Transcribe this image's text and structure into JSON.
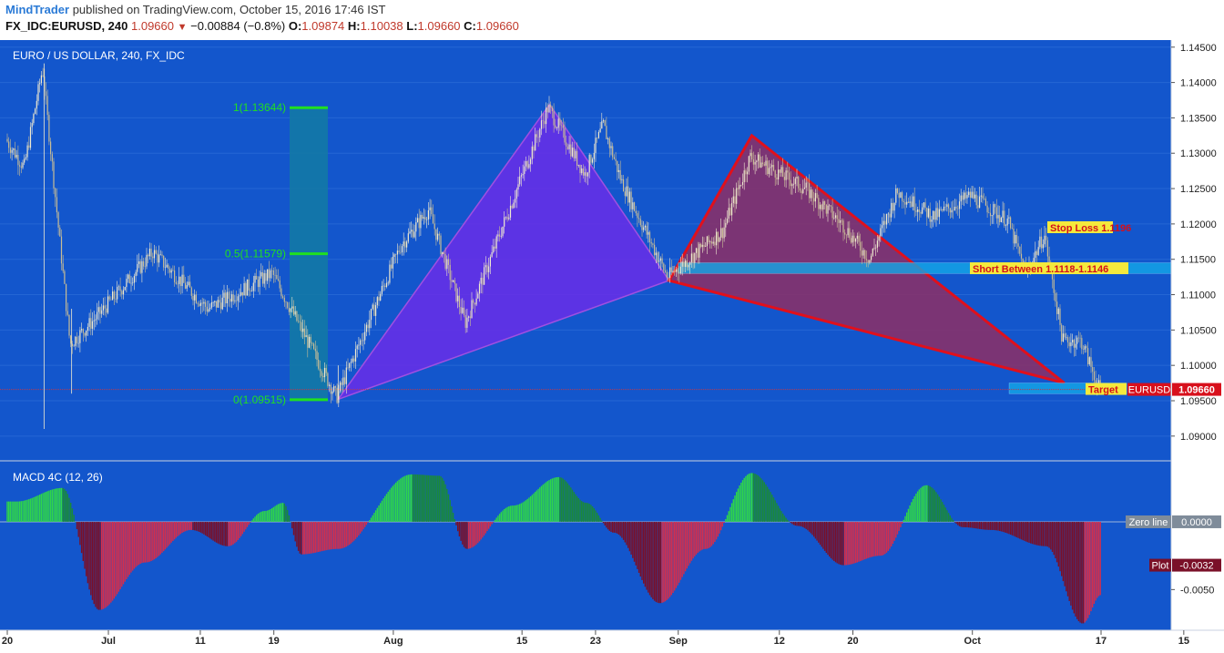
{
  "header": {
    "brand": "MindTrader",
    "published": " published on TradingView.com, October 15, 2016 17:46 IST",
    "symbol": "FX_IDC:EURUSD, 240",
    "last": "1.09660",
    "change": "−0.00884 (−0.8%)",
    "open_label": "O:",
    "open": "1.09874",
    "high_label": "H:",
    "high": "1.10038",
    "low_label": "L:",
    "low": "1.09660",
    "close_label": "C:",
    "close": "1.09660"
  },
  "colors": {
    "background": "#1356cc",
    "up_candle": "#f0ead0",
    "down_candle": "#c9bd95",
    "fib_box": "#137aa3",
    "fib_line": "#20e020",
    "bullish_pattern": "#6a2de8",
    "bearish_pattern": "#8a3068",
    "pattern_edge": "#e0101c",
    "zone": "#13a8e8",
    "label_bg": "#f4e93c",
    "label_text": "#d4101c",
    "macd_pos_light": "#2ed64a",
    "macd_pos_dark": "#1a8a3a",
    "macd_neg_light": "#d42e4c",
    "macd_neg_dark": "#7a1028"
  },
  "chart_data": [
    {
      "type": "candlestick",
      "title": "EURO / US DOLLAR, 240, FX_IDC",
      "ylim": [
        1.0865,
        1.146
      ],
      "price_ticks": [
        "1.14500",
        "1.14000",
        "1.13500",
        "1.13000",
        "1.12500",
        "1.12000",
        "1.11500",
        "1.11000",
        "1.10500",
        "1.10000",
        "1.09500",
        "1.09000"
      ],
      "x_ticks": [
        "20",
        "Jul",
        "11",
        "19",
        "Aug",
        "15",
        "23",
        "Sep",
        "12",
        "20",
        "Oct",
        "17",
        "15"
      ],
      "last_price": "1.09660",
      "last_price_label": "EURUSD",
      "price_path_approx": [
        {
          "date": "2016-06-20",
          "close": 1.132
        },
        {
          "date": "2016-06-22",
          "close": 1.128
        },
        {
          "date": "2016-06-24",
          "close": 1.142
        },
        {
          "date": "2016-06-27",
          "close": 1.103
        },
        {
          "date": "2016-06-30",
          "close": 1.107
        },
        {
          "date": "2016-07-06",
          "close": 1.116
        },
        {
          "date": "2016-07-12",
          "close": 1.108
        },
        {
          "date": "2016-07-19",
          "close": 1.113
        },
        {
          "date": "2016-07-25",
          "close": 1.098
        },
        {
          "date": "2016-07-26",
          "close": 1.0955
        },
        {
          "date": "2016-08-02",
          "close": 1.117
        },
        {
          "date": "2016-08-05",
          "close": 1.122
        },
        {
          "date": "2016-08-09",
          "close": 1.106
        },
        {
          "date": "2016-08-12",
          "close": 1.116
        },
        {
          "date": "2016-08-18",
          "close": 1.1365
        },
        {
          "date": "2016-08-22",
          "close": 1.127
        },
        {
          "date": "2016-08-24",
          "close": 1.134
        },
        {
          "date": "2016-08-26",
          "close": 1.126
        },
        {
          "date": "2016-08-31",
          "close": 1.1125
        },
        {
          "date": "2016-09-06",
          "close": 1.119
        },
        {
          "date": "2016-09-09",
          "close": 1.1295
        },
        {
          "date": "2016-09-15",
          "close": 1.125
        },
        {
          "date": "2016-09-19",
          "close": 1.12
        },
        {
          "date": "2016-09-22",
          "close": 1.115
        },
        {
          "date": "2016-09-25",
          "close": 1.1245
        },
        {
          "date": "2016-09-29",
          "close": 1.121
        },
        {
          "date": "2016-10-03",
          "close": 1.124
        },
        {
          "date": "2016-10-07",
          "close": 1.1205
        },
        {
          "date": "2016-10-09",
          "close": 1.113
        },
        {
          "date": "2016-10-11",
          "close": 1.1185
        },
        {
          "date": "2016-10-13",
          "close": 1.1035
        },
        {
          "date": "2016-10-15",
          "close": 1.1035
        },
        {
          "date": "2016-10-17",
          "close": 1.0966
        }
      ],
      "fib_levels": [
        {
          "label": "1(1.13644)",
          "price": 1.13644
        },
        {
          "label": "0.5(1.11579)",
          "price": 1.11579
        },
        {
          "label": "0(1.09515)",
          "price": 1.09515
        }
      ],
      "patterns": [
        {
          "kind": "bullish",
          "points": [
            {
              "date": "2016-07-26",
              "price": 1.0952
            },
            {
              "date": "2016-08-18",
              "price": 1.1369
            },
            {
              "date": "2016-08-31",
              "price": 1.112
            }
          ]
        },
        {
          "kind": "bearish",
          "points": [
            {
              "date": "2016-08-31",
              "price": 1.112
            },
            {
              "date": "2016-09-09",
              "price": 1.1325
            },
            {
              "date": "2016-10-13",
              "price": 1.0975
            }
          ]
        }
      ],
      "annotations": [
        {
          "text": "Stop Loss 1.1196",
          "price": 1.1196
        },
        {
          "text": "Short Between 1.1118-1.1146",
          "price": 1.1138
        },
        {
          "text": "Target",
          "price": 1.0966
        }
      ],
      "zones": [
        {
          "from": 1.113,
          "to": 1.1145,
          "start": "2016-09-01",
          "end": "2016-10-17"
        },
        {
          "from": 1.096,
          "to": 1.0975,
          "start": "2016-10-07",
          "end": "2016-10-17"
        }
      ]
    },
    {
      "type": "bar",
      "title": "MACD 4C (12, 26)",
      "ylim": [
        -0.008,
        0.0045
      ],
      "y_ticks": [
        "-0.0050"
      ],
      "zero_label": "Zero line",
      "zero_value": "0.0000",
      "plot_label": "Plot",
      "plot_value": "-0.0032",
      "histogram_approx": [
        {
          "date": "2016-06-21",
          "value": 0.0015
        },
        {
          "date": "2016-06-26",
          "value": 0.0025
        },
        {
          "date": "2016-06-30",
          "value": -0.0065
        },
        {
          "date": "2016-07-05",
          "value": -0.003
        },
        {
          "date": "2016-07-10",
          "value": -0.0006
        },
        {
          "date": "2016-07-14",
          "value": -0.0018
        },
        {
          "date": "2016-07-18",
          "value": 0.0008
        },
        {
          "date": "2016-07-20",
          "value": 0.0014
        },
        {
          "date": "2016-07-22",
          "value": -0.0024
        },
        {
          "date": "2016-07-26",
          "value": -0.002
        },
        {
          "date": "2016-08-03",
          "value": 0.0035
        },
        {
          "date": "2016-08-06",
          "value": 0.0034
        },
        {
          "date": "2016-08-09",
          "value": -0.002
        },
        {
          "date": "2016-08-14",
          "value": 0.0012
        },
        {
          "date": "2016-08-19",
          "value": 0.0033
        },
        {
          "date": "2016-08-22",
          "value": 0.0014
        },
        {
          "date": "2016-08-25",
          "value": -0.0008
        },
        {
          "date": "2016-08-30",
          "value": -0.006
        },
        {
          "date": "2016-09-04",
          "value": -0.002
        },
        {
          "date": "2016-09-09",
          "value": 0.0036
        },
        {
          "date": "2016-09-14",
          "value": -0.0003
        },
        {
          "date": "2016-09-19",
          "value": -0.0032
        },
        {
          "date": "2016-09-23",
          "value": -0.0025
        },
        {
          "date": "2016-09-28",
          "value": 0.0027
        },
        {
          "date": "2016-10-02",
          "value": -0.0004
        },
        {
          "date": "2016-10-05",
          "value": -0.0006
        },
        {
          "date": "2016-10-11",
          "value": -0.0018
        },
        {
          "date": "2016-10-15",
          "value": -0.0075
        },
        {
          "date": "2016-10-17",
          "value": -0.0054
        }
      ]
    }
  ]
}
